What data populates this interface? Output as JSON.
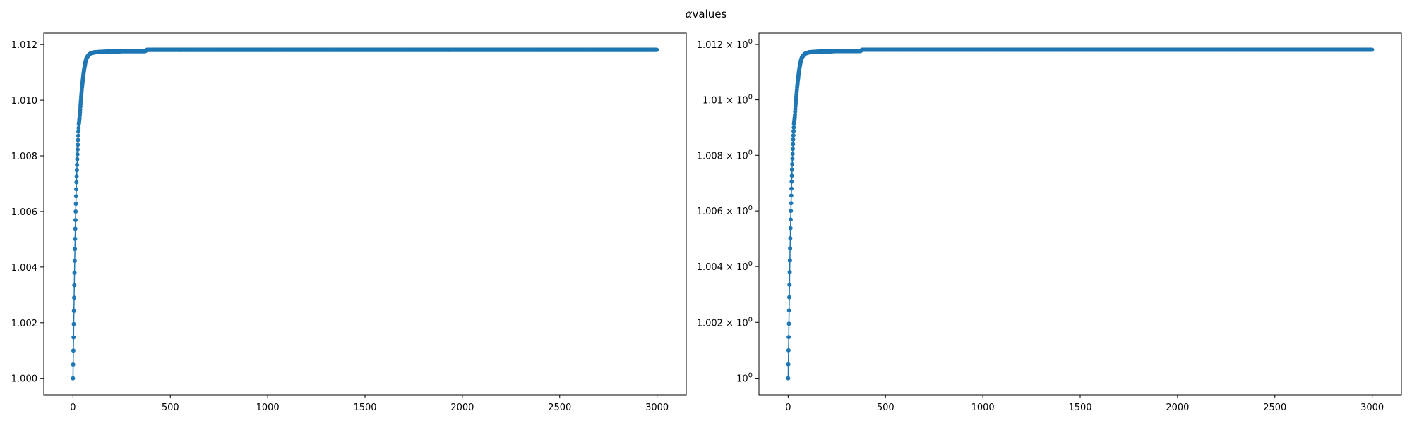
{
  "figure": {
    "suptitle_symbol": "α",
    "suptitle_rest": "values"
  },
  "colors": {
    "series": "#1f77b4",
    "axis": "#000000",
    "background": "#ffffff"
  },
  "chart_data": [
    {
      "type": "line",
      "marker": "circle",
      "y_scale": "linear",
      "xlim": [
        -150,
        3150
      ],
      "ylim": [
        0.99941,
        1.01241
      ],
      "x_ticks": [
        0,
        500,
        1000,
        1500,
        2000,
        2500,
        3000
      ],
      "x_tick_labels": [
        "0",
        "500",
        "1000",
        "1500",
        "2000",
        "2500",
        "3000"
      ],
      "y_ticks": [
        1.0,
        1.002,
        1.004,
        1.006,
        1.008,
        1.01,
        1.012
      ],
      "y_tick_labels": [
        "1.000",
        "1.002",
        "1.004",
        "1.006",
        "1.008",
        "1.010",
        "1.012"
      ],
      "series": [
        {
          "x_start": 0,
          "x_end": 2999,
          "points_shown": [
            [
              0,
              1.0
            ],
            [
              2,
              1.001
            ],
            [
              4,
              1.00195
            ],
            [
              6,
              1.0029
            ],
            [
              8,
              1.0038
            ],
            [
              10,
              1.00465
            ],
            [
              12,
              1.00538
            ],
            [
              14,
              1.006
            ],
            [
              16,
              1.00655
            ],
            [
              18,
              1.00705
            ],
            [
              20,
              1.00748
            ],
            [
              22,
              1.00788
            ],
            [
              24,
              1.00823
            ],
            [
              26,
              1.00857
            ],
            [
              28,
              1.00887
            ],
            [
              30,
              1.00913
            ],
            [
              34,
              1.00937
            ],
            [
              38,
              1.00977
            ],
            [
              42,
              1.01012
            ],
            [
              46,
              1.01045
            ],
            [
              50,
              1.0107
            ],
            [
              55,
              1.011
            ],
            [
              60,
              1.01122
            ],
            [
              65,
              1.0114
            ],
            [
              70,
              1.01152
            ],
            [
              80,
              1.01162
            ],
            [
              90,
              1.01168
            ],
            [
              110,
              1.01172
            ],
            [
              150,
              1.01174
            ],
            [
              250,
              1.01176
            ],
            [
              370,
              1.01176
            ],
            [
              380,
              1.01181
            ],
            [
              3000,
              1.01181
            ]
          ]
        }
      ]
    },
    {
      "type": "line",
      "marker": "circle",
      "y_scale": "log",
      "xlim": [
        -150,
        3150
      ],
      "ylim": [
        0.99941,
        1.01241
      ],
      "x_ticks": [
        0,
        500,
        1000,
        1500,
        2000,
        2500,
        3000
      ],
      "x_tick_labels": [
        "0",
        "500",
        "1000",
        "1500",
        "2000",
        "2500",
        "3000"
      ],
      "y_ticks": [
        1.0,
        1.002,
        1.004,
        1.006,
        1.008,
        1.01,
        1.012
      ],
      "y_tick_labels": [
        {
          "mantissa": "",
          "base": "10",
          "exp": "0"
        },
        {
          "mantissa": "1.002",
          "base": "10",
          "exp": "0"
        },
        {
          "mantissa": "1.004",
          "base": "10",
          "exp": "0"
        },
        {
          "mantissa": "1.006",
          "base": "10",
          "exp": "0"
        },
        {
          "mantissa": "1.008",
          "base": "10",
          "exp": "0"
        },
        {
          "mantissa": "1.01",
          "base": "10",
          "exp": "0"
        },
        {
          "mantissa": "1.012",
          "base": "10",
          "exp": "0"
        }
      ],
      "series": [
        {
          "x_start": 0,
          "x_end": 2999,
          "points_shown": [
            [
              0,
              1.0
            ],
            [
              2,
              1.001
            ],
            [
              4,
              1.00195
            ],
            [
              6,
              1.0029
            ],
            [
              8,
              1.0038
            ],
            [
              10,
              1.00465
            ],
            [
              12,
              1.00538
            ],
            [
              14,
              1.006
            ],
            [
              16,
              1.00655
            ],
            [
              18,
              1.00705
            ],
            [
              20,
              1.00748
            ],
            [
              22,
              1.00788
            ],
            [
              24,
              1.00823
            ],
            [
              26,
              1.00857
            ],
            [
              28,
              1.00887
            ],
            [
              30,
              1.00913
            ],
            [
              34,
              1.00937
            ],
            [
              38,
              1.00977
            ],
            [
              42,
              1.01012
            ],
            [
              46,
              1.01045
            ],
            [
              50,
              1.0107
            ],
            [
              55,
              1.011
            ],
            [
              60,
              1.01122
            ],
            [
              65,
              1.0114
            ],
            [
              70,
              1.01152
            ],
            [
              80,
              1.01162
            ],
            [
              90,
              1.01168
            ],
            [
              110,
              1.01172
            ],
            [
              150,
              1.01174
            ],
            [
              250,
              1.01176
            ],
            [
              370,
              1.01176
            ],
            [
              380,
              1.01181
            ],
            [
              3000,
              1.01181
            ]
          ]
        }
      ]
    }
  ]
}
